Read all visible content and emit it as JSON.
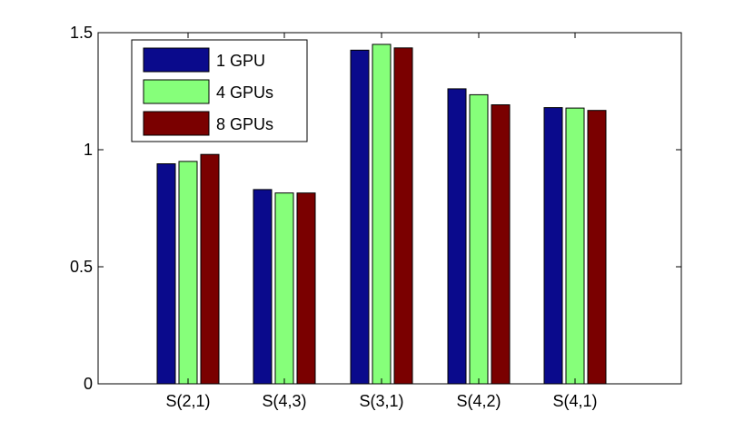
{
  "chart_data": {
    "type": "bar",
    "categories": [
      "S(2,1)",
      "S(4,3)",
      "S(3,1)",
      "S(4,2)",
      "S(4,1)"
    ],
    "series": [
      {
        "name": "1 GPU",
        "values": [
          0.94,
          0.83,
          1.425,
          1.26,
          1.18
        ],
        "color": "#0a0a8c"
      },
      {
        "name": "4 GPUs",
        "values": [
          0.95,
          0.815,
          1.45,
          1.235,
          1.178
        ],
        "color": "#86ff7a"
      },
      {
        "name": "8 GPUs",
        "values": [
          0.98,
          0.815,
          1.435,
          1.192,
          1.168
        ],
        "color": "#7a0000"
      }
    ],
    "ylim": [
      0,
      1.5
    ],
    "yticks": [
      0,
      0.5,
      1,
      1.5
    ],
    "ytick_labels": [
      "0",
      "0.5",
      "1",
      "1.5"
    ],
    "title": "",
    "xlabel": "",
    "ylabel": "",
    "legend_position": "top-left"
  }
}
